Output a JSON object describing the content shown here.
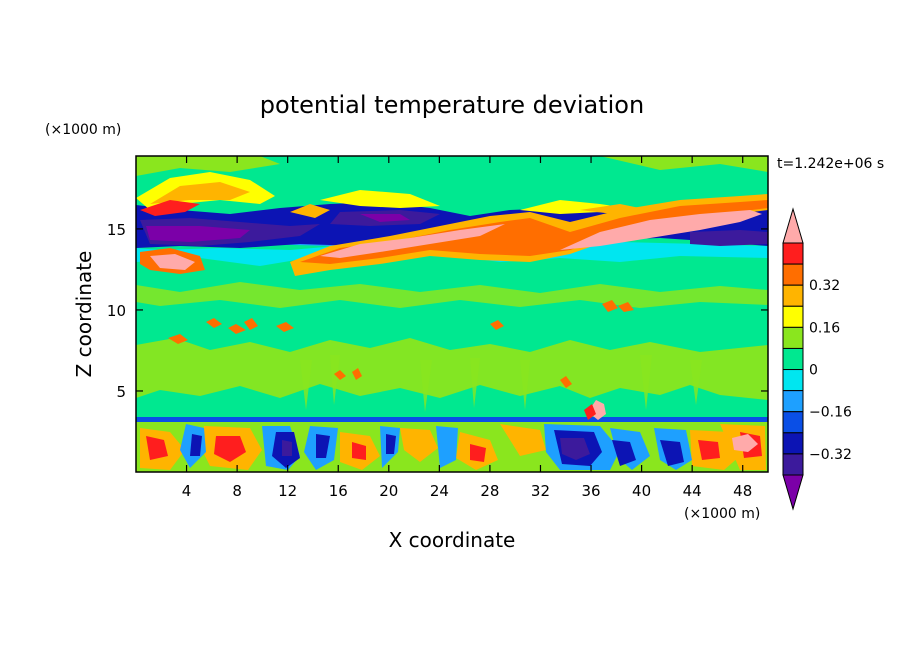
{
  "chart_data": {
    "type": "heatmap",
    "title": "potential temperature deviation",
    "xlabel": "X coordinate",
    "ylabel": "Z coordinate",
    "x_unit": "(×1000 m)",
    "y_unit": "(×1000 m)",
    "time_label": "t=1.242e+06 s",
    "xlim": [
      0,
      50
    ],
    "ylim": [
      0,
      19.5
    ],
    "x_ticks": [
      4,
      8,
      12,
      16,
      20,
      24,
      28,
      32,
      36,
      40,
      44,
      48
    ],
    "y_ticks": [
      5,
      10,
      15
    ],
    "colorbar": {
      "levels": [
        -0.48,
        -0.4,
        -0.32,
        -0.24,
        -0.16,
        -0.08,
        0,
        0.08,
        0.16,
        0.24,
        0.32,
        0.4,
        0.48
      ],
      "labeled_ticks": [
        {
          "value": 0.32,
          "label": "0.32"
        },
        {
          "value": 0.16,
          "label": "0.16"
        },
        {
          "value": 0,
          "label": "0"
        },
        {
          "value": -0.16,
          "label": "−0.16"
        },
        {
          "value": -0.32,
          "label": "−0.32"
        }
      ],
      "colors": [
        "#7b00a8",
        "#3c1a9c",
        "#0c14b4",
        "#0a4fe6",
        "#1ea0ff",
        "#00e6f0",
        "#00e890",
        "#8ae61e",
        "#ffff00",
        "#ffb400",
        "#ff6e00",
        "#ff1e1e",
        "#ffaaaa"
      ]
    },
    "fields": [
      {
        "value": 0.05,
        "x": [
          0,
          50
        ],
        "z": [
          0,
          19.5
        ]
      },
      {
        "value": 0.06,
        "x": [
          0,
          50
        ],
        "z": [
          5.0,
          8.5
        ]
      },
      {
        "value": 0.04,
        "x": [
          0,
          50
        ],
        "z": [
          9.0,
          12.5
        ]
      },
      {
        "value": -0.1,
        "x": [
          0,
          50
        ],
        "z": [
          12.3,
          13.9
        ]
      },
      {
        "value": -0.35,
        "x": [
          0,
          50
        ],
        "z": [
          13.8,
          15.6
        ]
      },
      {
        "value": -0.24,
        "x": [
          0,
          50
        ],
        "z": [
          15.6,
          16.3
        ]
      },
      {
        "value": 0.12,
        "x": [
          0,
          50
        ],
        "z": [
          16.3,
          17.3
        ]
      },
      {
        "value": 0.2,
        "x": [
          3,
          9
        ],
        "z": [
          16.8,
          18.3
        ]
      },
      {
        "value": 0.45,
        "x": [
          16,
          37
        ],
        "z": [
          13.6,
          15.0
        ]
      },
      {
        "value": 0.45,
        "x": [
          34,
          50
        ],
        "z": [
          13.6,
          16.6
        ]
      },
      {
        "value": 0.3,
        "x": [
          1,
          6
        ],
        "z": [
          12.7,
          14.0
        ]
      },
      {
        "value": 0.2,
        "x": [
          6,
          14
        ],
        "z": [
          9.0,
          10.0
        ]
      },
      {
        "value": 0.2,
        "x": [
          35,
          38
        ],
        "z": [
          3.3,
          4.6
        ]
      },
      {
        "value": -0.4,
        "x": [
          0,
          50
        ],
        "z": [
          0,
          3.2
        ]
      },
      {
        "value": 0.3,
        "x": [
          0,
          50
        ],
        "z": [
          0,
          3.2
        ]
      }
    ]
  }
}
